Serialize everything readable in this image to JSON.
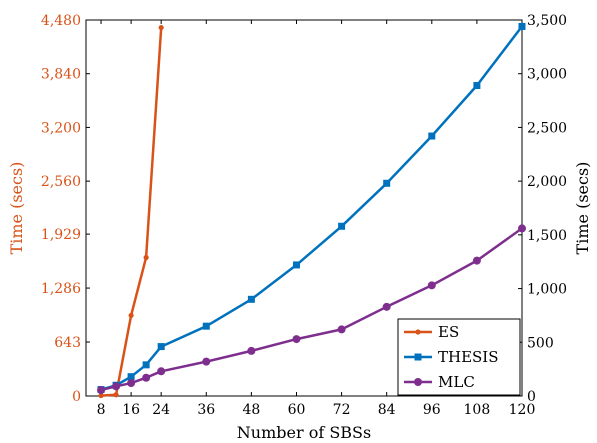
{
  "chart_data": {
    "type": "line",
    "xlabel": "Number of SBSs",
    "ylabel_left": "Time (secs)",
    "ylabel_right": "Time (secs)",
    "x_ticks": [
      8,
      16,
      24,
      36,
      48,
      60,
      72,
      84,
      96,
      108,
      120
    ],
    "x_range": [
      4,
      120
    ],
    "y_left_range": [
      0,
      4480
    ],
    "y_left_ticks": [
      0,
      643,
      1286,
      1929,
      2560,
      3200,
      3840,
      4480
    ],
    "y_left_tick_labels": [
      "0",
      "643",
      "1,286",
      "1,929",
      "2,560",
      "3,200",
      "3,840",
      "4,480"
    ],
    "y_right_range": [
      0,
      3500
    ],
    "y_right_ticks": [
      0,
      500,
      1000,
      1500,
      2000,
      2500,
      3000,
      3500
    ],
    "y_right_tick_labels": [
      "0",
      "500",
      "1,000",
      "1,500",
      "2,000",
      "2,500",
      "3,000",
      "3,500"
    ],
    "legend_position": "bottom-right",
    "grid": false,
    "series": [
      {
        "name": "ES",
        "axis": "left",
        "color": "#d95319",
        "marker": "dot",
        "x": [
          8,
          12,
          16,
          20,
          24
        ],
        "y": [
          5,
          15,
          960,
          1650,
          4390
        ]
      },
      {
        "name": "THESIS",
        "axis": "right",
        "color": "#0072bd",
        "marker": "square",
        "x": [
          8,
          12,
          16,
          20,
          24,
          36,
          48,
          60,
          72,
          84,
          96,
          108,
          120
        ],
        "y": [
          60,
          100,
          180,
          290,
          460,
          650,
          900,
          1220,
          1580,
          1980,
          2420,
          2890,
          3440
        ]
      },
      {
        "name": "MLC",
        "axis": "right",
        "color": "#7e2f8e",
        "marker": "circle",
        "x": [
          8,
          12,
          16,
          20,
          24,
          36,
          48,
          60,
          72,
          84,
          96,
          108,
          120
        ],
        "y": [
          55,
          90,
          120,
          170,
          230,
          320,
          420,
          530,
          620,
          830,
          1030,
          1260,
          1560
        ]
      }
    ]
  }
}
